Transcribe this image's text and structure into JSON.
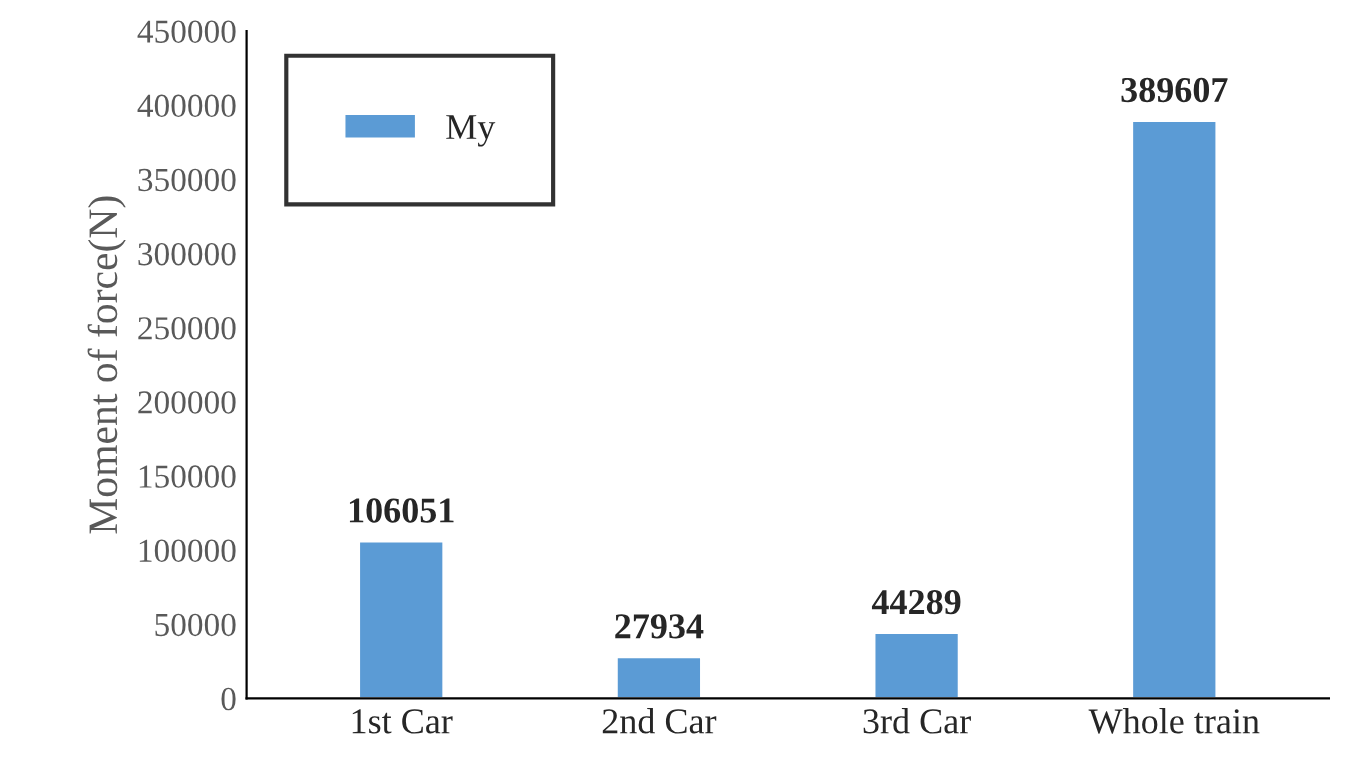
{
  "chart_data": {
    "type": "bar",
    "ylabel": "Moment of force(N)",
    "categories": [
      "1st Car",
      "2nd Car",
      "3rd Car",
      "Whole train"
    ],
    "series": [
      {
        "name": "My",
        "color": "#5b9bd5",
        "values": [
          106051,
          27934,
          44289,
          389607
        ]
      }
    ],
    "ylim": [
      0,
      450000
    ],
    "yticks": [
      0,
      50000,
      100000,
      150000,
      200000,
      250000,
      300000,
      350000,
      400000,
      450000
    ],
    "data_labels": true,
    "legend": "top left",
    "grid": false
  }
}
